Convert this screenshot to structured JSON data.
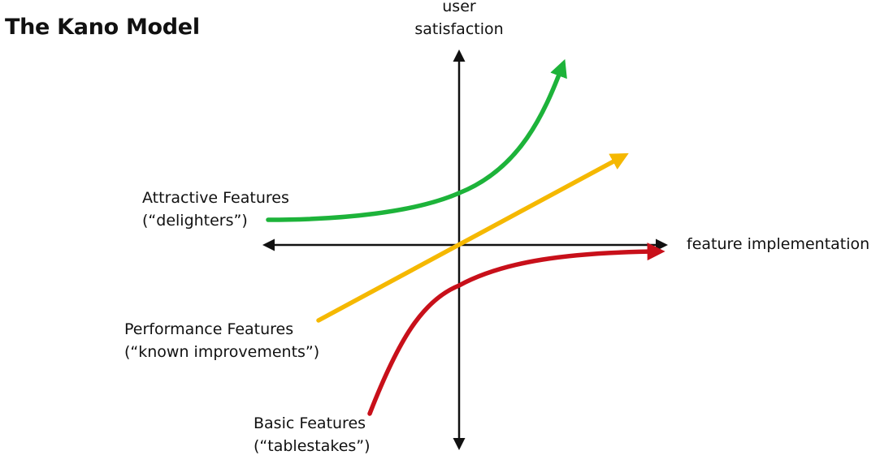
{
  "title": "The Kano Model",
  "axes": {
    "y_label_line1": "user",
    "y_label_line2": "satisfaction",
    "x_label": "feature implementation"
  },
  "curves": {
    "attractive": {
      "name": "Attractive Features",
      "subtitle": "(“delighters”)",
      "color": "#1db33a"
    },
    "performance": {
      "name": "Performance Features",
      "subtitle": "(“known improvements”)",
      "color": "#f5b800"
    },
    "basic": {
      "name": "Basic Features",
      "subtitle": "(“tablestakes”)",
      "color": "#c8101a"
    }
  },
  "colors": {
    "axis": "#111111",
    "text": "#111111"
  }
}
